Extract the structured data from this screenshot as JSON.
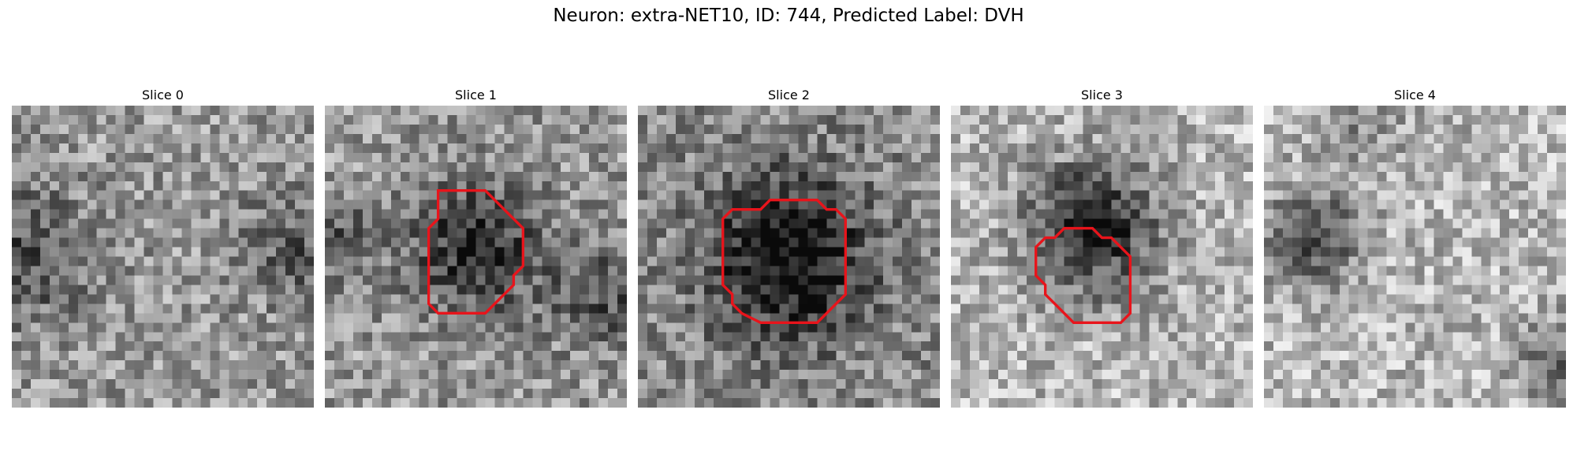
{
  "figure": {
    "title": "Neuron: extra-NET10, ID: 744, Predicted Label: DVH",
    "contour_color": "#e8141b"
  },
  "slices": [
    {
      "title": "Slice 0",
      "has_contour": false
    },
    {
      "title": "Slice 1",
      "has_contour": true
    },
    {
      "title": "Slice 2",
      "has_contour": true
    },
    {
      "title": "Slice 3",
      "has_contour": true
    },
    {
      "title": "Slice 4",
      "has_contour": false
    }
  ]
}
